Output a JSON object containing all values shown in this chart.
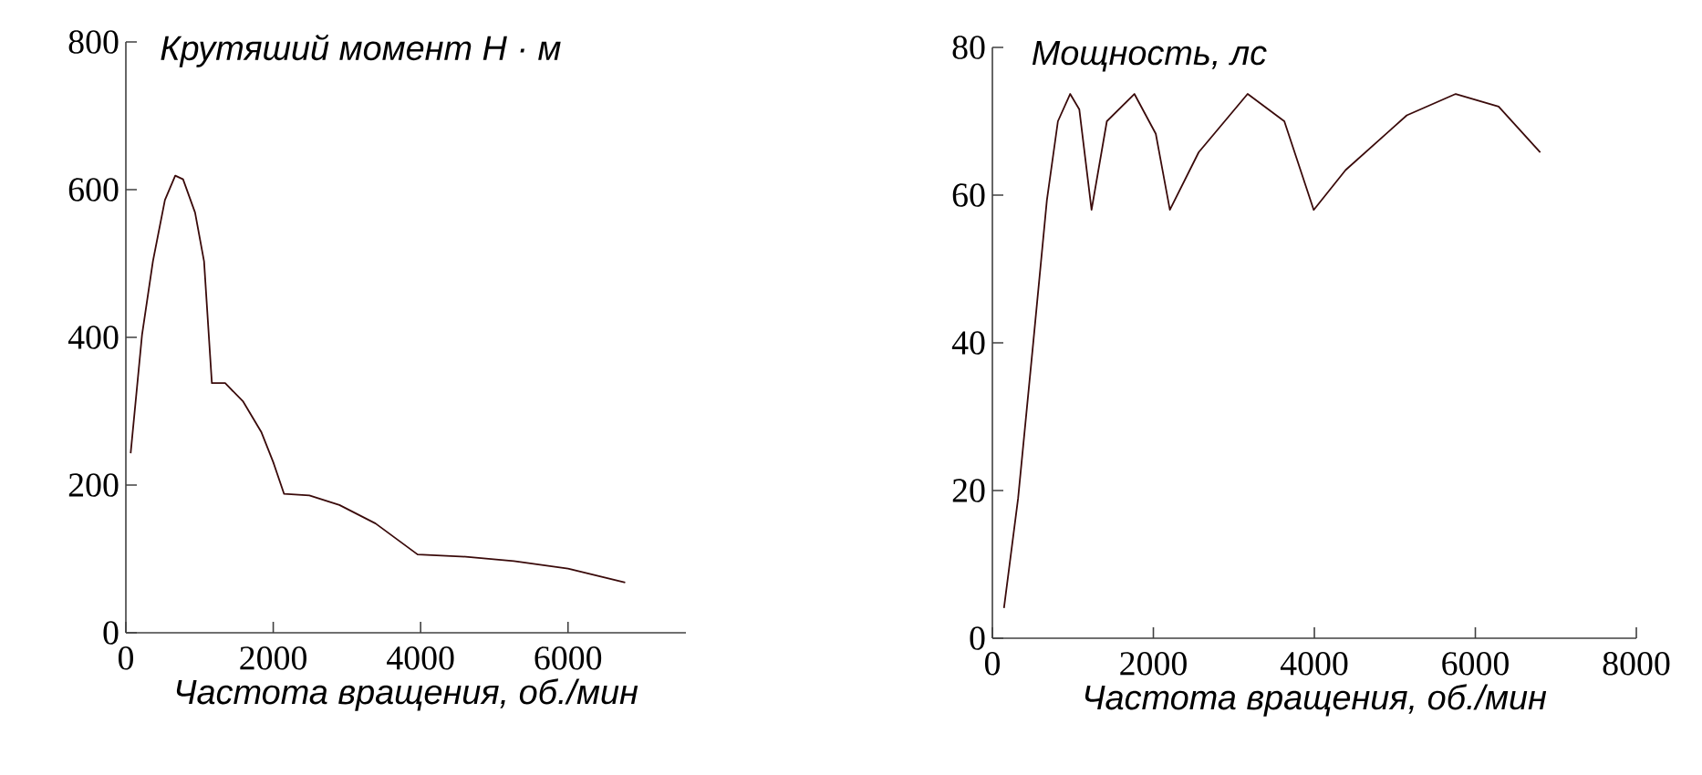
{
  "chart_data": [
    {
      "type": "line",
      "title": "Крутяший момент Н · м",
      "xlabel": "Частота вращения, об./мин",
      "color": "#3a0a0a",
      "xlim": [
        0,
        7600
      ],
      "ylim": [
        0,
        800
      ],
      "xticks": [
        0,
        2000,
        4000,
        6000
      ],
      "yticks": [
        0,
        200,
        400,
        600,
        800
      ],
      "x": [
        65,
        220,
        367,
        530,
        670,
        776,
        939,
        1061,
        1167,
        1347,
        1592,
        1837,
        2000,
        2147,
        2490,
        2898,
        3388,
        3959,
        4612,
        5265,
        6000,
        6776
      ],
      "values": [
        243,
        404,
        503,
        586,
        619,
        614,
        569,
        503,
        338,
        338,
        313,
        272,
        231,
        188,
        186,
        173,
        148,
        106,
        103,
        97,
        87,
        68
      ]
    },
    {
      "type": "line",
      "title": "Мощность, лс",
      "xlabel": "Частота вращения, об./мин",
      "color": "#3a0a0a",
      "xlim": [
        0,
        8000
      ],
      "ylim": [
        0,
        80
      ],
      "xticks": [
        0,
        2000,
        4000,
        6000,
        8000
      ],
      "yticks": [
        0,
        20,
        40,
        60,
        80
      ],
      "x": [
        144,
        319,
        510,
        677,
        814,
        966,
        1080,
        1232,
        1422,
        1764,
        2030,
        2205,
        2563,
        3171,
        3627,
        3992,
        4388,
        5148,
        5756,
        6289,
        6806
      ],
      "values": [
        4.1,
        18.9,
        40.3,
        59.3,
        70,
        73.7,
        71.6,
        58,
        70,
        73.7,
        68.3,
        58,
        65.8,
        73.7,
        70,
        58,
        63.4,
        70.8,
        73.7,
        72,
        65.8
      ]
    }
  ]
}
